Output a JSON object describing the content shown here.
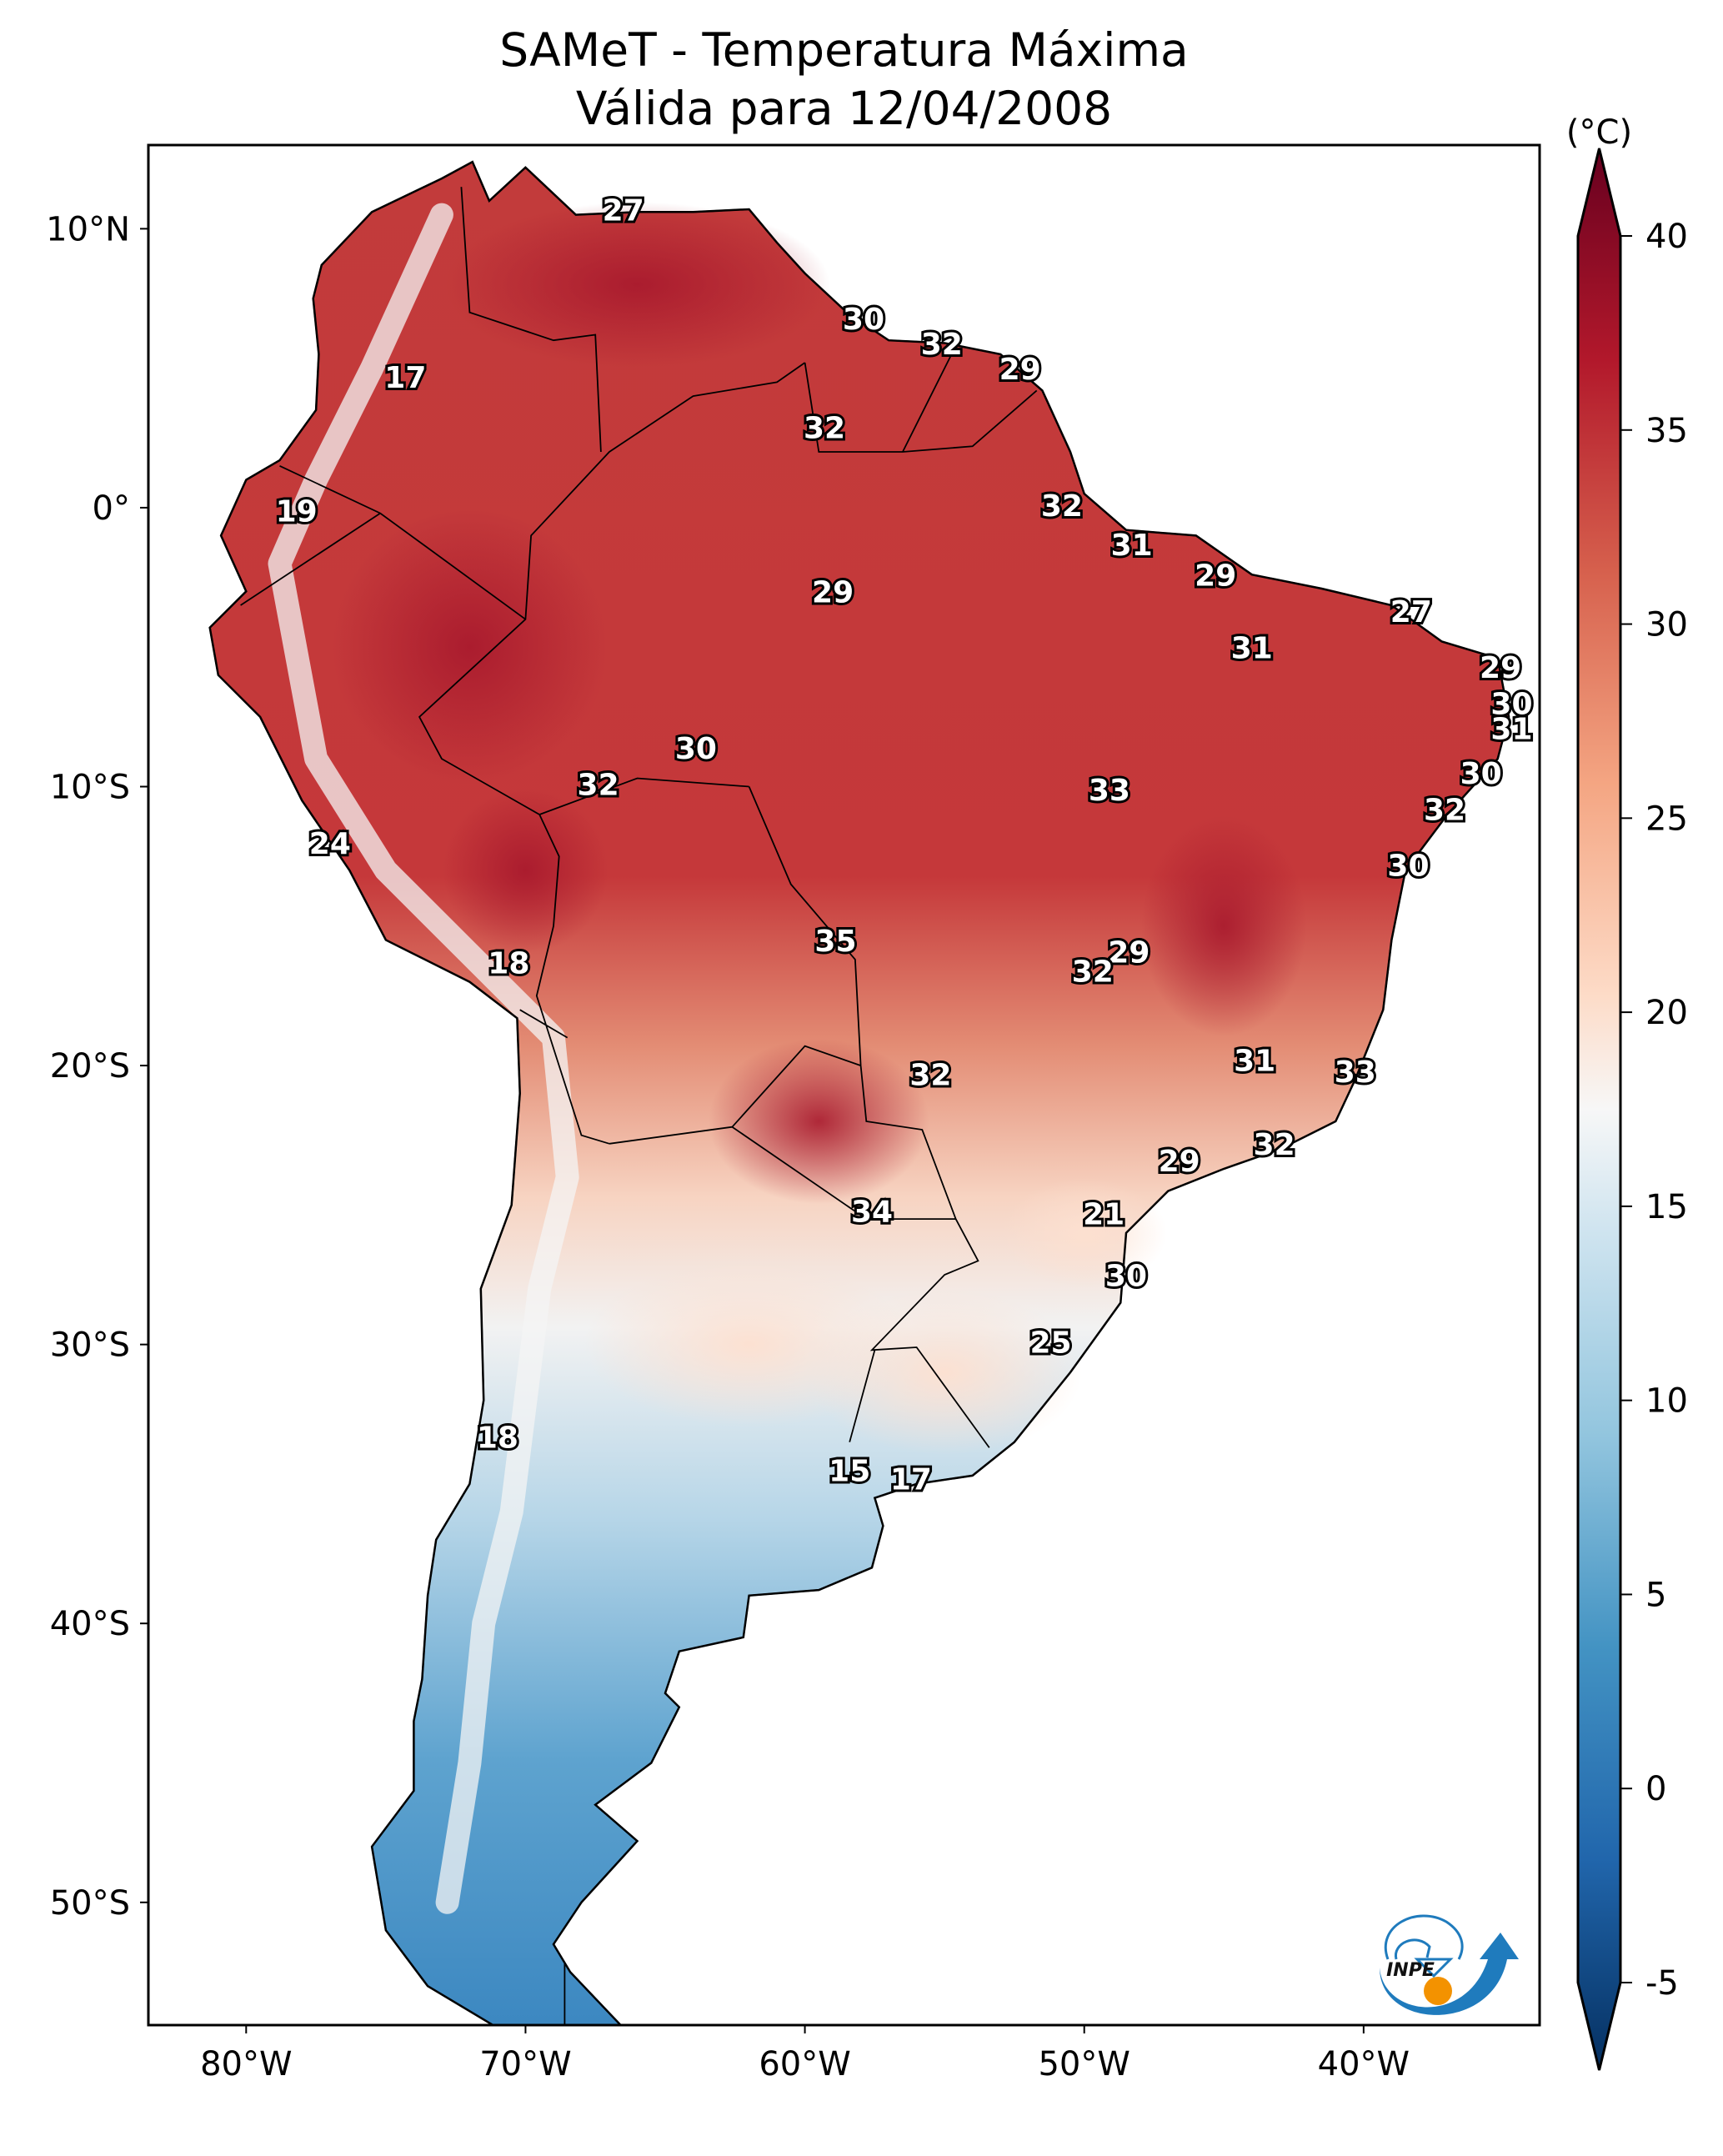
{
  "chart_data": {
    "type": "heatmap",
    "title": "SAMeT - Temperatura Máxima",
    "subtitle": "Válida para 12/04/2008",
    "xlabel": "",
    "ylabel": "",
    "projection": "PlateCarree",
    "xlim": [
      -83.5,
      -33.7
    ],
    "ylim": [
      -54.4,
      13.0
    ],
    "x_ticks": [
      {
        "value": -80,
        "label": "80°W"
      },
      {
        "value": -70,
        "label": "70°W"
      },
      {
        "value": -60,
        "label": "60°W"
      },
      {
        "value": -50,
        "label": "50°W"
      },
      {
        "value": -40,
        "label": "40°W"
      }
    ],
    "y_ticks": [
      {
        "value": 10,
        "label": "10°N"
      },
      {
        "value": 0,
        "label": "0°"
      },
      {
        "value": -10,
        "label": "10°S"
      },
      {
        "value": -20,
        "label": "20°S"
      },
      {
        "value": -30,
        "label": "30°S"
      },
      {
        "value": -40,
        "label": "40°S"
      },
      {
        "value": -50,
        "label": "50°S"
      }
    ],
    "colorbar": {
      "label": "(°C)",
      "colormap": "RdBu_r",
      "range": [
        -5,
        40
      ],
      "extend": "both",
      "ticks": [
        {
          "value": 40,
          "label": "40"
        },
        {
          "value": 35,
          "label": "35"
        },
        {
          "value": 30,
          "label": "30"
        },
        {
          "value": 25,
          "label": "25"
        },
        {
          "value": 20,
          "label": "20"
        },
        {
          "value": 15,
          "label": "15"
        },
        {
          "value": 10,
          "label": "10"
        },
        {
          "value": 5,
          "label": "5"
        },
        {
          "value": 0,
          "label": "0"
        },
        {
          "value": -5,
          "label": "-5"
        }
      ]
    },
    "station_labels": [
      {
        "lon": -66.5,
        "lat": 10.6,
        "value": "27"
      },
      {
        "lon": -74.3,
        "lat": 4.6,
        "value": "17"
      },
      {
        "lon": -57.9,
        "lat": 6.7,
        "value": "30"
      },
      {
        "lon": -55.1,
        "lat": 5.8,
        "value": "32"
      },
      {
        "lon": -52.3,
        "lat": 4.9,
        "value": "29"
      },
      {
        "lon": -59.3,
        "lat": 2.8,
        "value": "32"
      },
      {
        "lon": -78.2,
        "lat": -0.2,
        "value": "19"
      },
      {
        "lon": -50.8,
        "lat": 0.0,
        "value": "32"
      },
      {
        "lon": -59.0,
        "lat": -3.1,
        "value": "29"
      },
      {
        "lon": -48.3,
        "lat": -1.4,
        "value": "31"
      },
      {
        "lon": -45.3,
        "lat": -2.5,
        "value": "29"
      },
      {
        "lon": -38.3,
        "lat": -3.8,
        "value": "27"
      },
      {
        "lon": -44.0,
        "lat": -5.1,
        "value": "31"
      },
      {
        "lon": -35.1,
        "lat": -5.8,
        "value": "29"
      },
      {
        "lon": -34.7,
        "lat": -7.1,
        "value": "30"
      },
      {
        "lon": -34.7,
        "lat": -8.0,
        "value": "31"
      },
      {
        "lon": -35.8,
        "lat": -9.6,
        "value": "30"
      },
      {
        "lon": -37.1,
        "lat": -10.9,
        "value": "32"
      },
      {
        "lon": -38.4,
        "lat": -12.9,
        "value": "30"
      },
      {
        "lon": -67.4,
        "lat": -10.0,
        "value": "32"
      },
      {
        "lon": -63.9,
        "lat": -8.7,
        "value": "30"
      },
      {
        "lon": -49.1,
        "lat": -10.2,
        "value": "33"
      },
      {
        "lon": -58.9,
        "lat": -15.6,
        "value": "35"
      },
      {
        "lon": -48.4,
        "lat": -16.0,
        "value": "29"
      },
      {
        "lon": -49.7,
        "lat": -16.7,
        "value": "32"
      },
      {
        "lon": -70.6,
        "lat": -16.4,
        "value": "18"
      },
      {
        "lon": -77.0,
        "lat": -12.1,
        "value": "24"
      },
      {
        "lon": -55.5,
        "lat": -20.4,
        "value": "32"
      },
      {
        "lon": -43.9,
        "lat": -19.9,
        "value": "31"
      },
      {
        "lon": -40.3,
        "lat": -20.3,
        "value": "33"
      },
      {
        "lon": -43.2,
        "lat": -22.9,
        "value": "32"
      },
      {
        "lon": -46.6,
        "lat": -23.5,
        "value": "29"
      },
      {
        "lon": -57.6,
        "lat": -25.3,
        "value": "34"
      },
      {
        "lon": -49.3,
        "lat": -25.4,
        "value": "21"
      },
      {
        "lon": -48.5,
        "lat": -27.6,
        "value": "30"
      },
      {
        "lon": -51.2,
        "lat": -30.0,
        "value": "25"
      },
      {
        "lon": -71.0,
        "lat": -33.4,
        "value": "18"
      },
      {
        "lon": -58.4,
        "lat": -34.6,
        "value": "15"
      },
      {
        "lon": -56.2,
        "lat": -34.9,
        "value": "17"
      }
    ]
  },
  "logo": {
    "text": "INPE"
  }
}
